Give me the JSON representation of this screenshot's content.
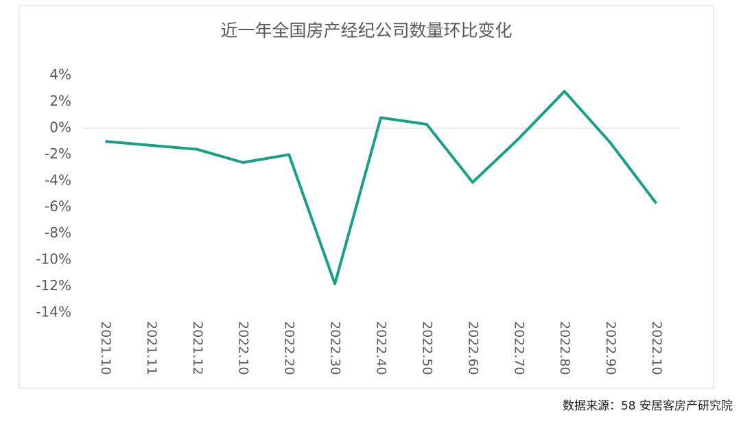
{
  "chart_data": {
    "type": "line",
    "title": "近一年全国房产经纪公司数量环比变化",
    "categories": [
      "2021.10",
      "2021.11",
      "2021.12",
      "2022.10",
      "2022.20",
      "2022.30",
      "2022.40",
      "2022.50",
      "2022.60",
      "2022.70",
      "2022.80",
      "2022.90",
      "2022.10"
    ],
    "series": [
      {
        "name": "环比变化",
        "color": "#17a086",
        "values": [
          -1.0,
          -1.3,
          -1.6,
          -2.6,
          -2.0,
          -11.8,
          0.8,
          0.3,
          -4.1,
          -0.8,
          2.8,
          -1.1,
          -5.7
        ]
      }
    ],
    "ylim": [
      -14,
      4
    ],
    "yticks": [
      {
        "value": 4,
        "label": "4%"
      },
      {
        "value": 2,
        "label": "2%"
      },
      {
        "value": 0,
        "label": "0%"
      },
      {
        "value": -2,
        "label": "-2%"
      },
      {
        "value": -4,
        "label": "-4%"
      },
      {
        "value": -6,
        "label": "-6%"
      },
      {
        "value": -8,
        "label": "-8%"
      },
      {
        "value": -10,
        "label": "-10%"
      },
      {
        "value": -12,
        "label": "-12%"
      },
      {
        "value": -14,
        "label": "-14%"
      }
    ],
    "grid": false,
    "source": "数据来源：58 安居客房产研究院"
  }
}
